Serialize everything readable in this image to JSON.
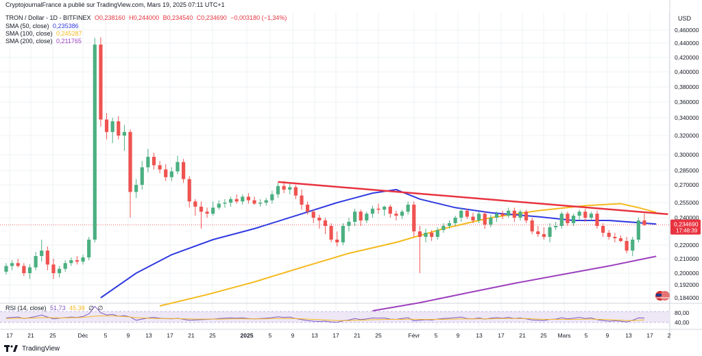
{
  "header": {
    "publisher_line": "CryptojournalFrance a publié sur TradingView.com, Mars 19, 2025 07:11 UTC+1",
    "symbol": "TRON / Dollar - 1D - BITFINEX",
    "ohlc": {
      "o": "O0,238160",
      "h": "H0,244000",
      "b": "B0,234540",
      "c": "C0,234690",
      "chg": "−0,003180 (−1,34%)"
    },
    "sma50": {
      "label": "SMA (50, close)",
      "value": "0,235386",
      "color": "#2f3ae0"
    },
    "sma100": {
      "label": "SMA (100, close)",
      "value": "0,245287",
      "color": "#f5b91c"
    },
    "sma200": {
      "label": "SMA (200, close)",
      "value": "0,211765",
      "color": "#9c3fbd"
    }
  },
  "footer": {
    "brand": "TradingView"
  },
  "rsi": {
    "label": "RSI (14, close)",
    "value1": "51,73",
    "value2": "45,38",
    "v3": "∅",
    "v4": "∅",
    "tick_high": "80,00",
    "tick_low": "40,00"
  },
  "price_tag": {
    "value": "0,234690",
    "countdown": "17:48:39"
  },
  "chart_data": {
    "type": "candlestick",
    "currency_label": "USD",
    "y_ticks": [
      "0,460000",
      "0,440000",
      "0,420000",
      "0,400000",
      "0,380000",
      "0,360000",
      "0,340000",
      "0,320000",
      "0,300000",
      "0,285000",
      "0,270000",
      "0,255000",
      "0,240000",
      "0,220000",
      "0,210000",
      "0,200000",
      "0,192000",
      "0,184000"
    ],
    "y_tick_values": [
      0.46,
      0.44,
      0.42,
      0.4,
      0.38,
      0.36,
      0.34,
      0.32,
      0.3,
      0.285,
      0.27,
      0.255,
      0.24,
      0.22,
      0.21,
      0.2,
      0.192,
      0.184
    ],
    "x_ticks": [
      "17",
      "21",
      "25",
      "Déc",
      "5",
      "9",
      "13",
      "17",
      "21",
      "25",
      "2025",
      "5",
      "9",
      "13",
      "17",
      "21",
      "25",
      "Févr",
      "5",
      "9",
      "13",
      "17",
      "21",
      "25",
      "Mars",
      "5",
      "9",
      "13",
      "17",
      "2"
    ],
    "candles": [
      {
        "o": 0.201,
        "h": 0.207,
        "l": 0.199,
        "c": 0.205
      },
      {
        "o": 0.205,
        "h": 0.209,
        "l": 0.202,
        "c": 0.207
      },
      {
        "o": 0.207,
        "h": 0.21,
        "l": 0.204,
        "c": 0.205
      },
      {
        "o": 0.205,
        "h": 0.207,
        "l": 0.198,
        "c": 0.2
      },
      {
        "o": 0.2,
        "h": 0.206,
        "l": 0.196,
        "c": 0.204
      },
      {
        "o": 0.204,
        "h": 0.215,
        "l": 0.202,
        "c": 0.212
      },
      {
        "o": 0.212,
        "h": 0.224,
        "l": 0.208,
        "c": 0.216
      },
      {
        "o": 0.216,
        "h": 0.219,
        "l": 0.202,
        "c": 0.206
      },
      {
        "o": 0.206,
        "h": 0.21,
        "l": 0.196,
        "c": 0.2
      },
      {
        "o": 0.2,
        "h": 0.205,
        "l": 0.197,
        "c": 0.203
      },
      {
        "o": 0.203,
        "h": 0.209,
        "l": 0.201,
        "c": 0.207
      },
      {
        "o": 0.207,
        "h": 0.211,
        "l": 0.205,
        "c": 0.209
      },
      {
        "o": 0.209,
        "h": 0.212,
        "l": 0.206,
        "c": 0.208
      },
      {
        "o": 0.208,
        "h": 0.213,
        "l": 0.206,
        "c": 0.211
      },
      {
        "o": 0.211,
        "h": 0.226,
        "l": 0.209,
        "c": 0.224
      },
      {
        "o": 0.224,
        "h": 0.448,
        "l": 0.222,
        "c": 0.438
      },
      {
        "o": 0.438,
        "h": 0.449,
        "l": 0.33,
        "c": 0.338
      },
      {
        "o": 0.338,
        "h": 0.346,
        "l": 0.316,
        "c": 0.324
      },
      {
        "o": 0.324,
        "h": 0.34,
        "l": 0.312,
        "c": 0.336
      },
      {
        "o": 0.336,
        "h": 0.342,
        "l": 0.316,
        "c": 0.32
      },
      {
        "o": 0.32,
        "h": 0.332,
        "l": 0.304,
        "c": 0.324
      },
      {
        "o": 0.324,
        "h": 0.327,
        "l": 0.24,
        "c": 0.264
      },
      {
        "o": 0.264,
        "h": 0.276,
        "l": 0.259,
        "c": 0.27
      },
      {
        "o": 0.27,
        "h": 0.294,
        "l": 0.266,
        "c": 0.288
      },
      {
        "o": 0.288,
        "h": 0.306,
        "l": 0.283,
        "c": 0.298
      },
      {
        "o": 0.298,
        "h": 0.302,
        "l": 0.286,
        "c": 0.29
      },
      {
        "o": 0.29,
        "h": 0.294,
        "l": 0.282,
        "c": 0.286
      },
      {
        "o": 0.286,
        "h": 0.291,
        "l": 0.274,
        "c": 0.278
      },
      {
        "o": 0.278,
        "h": 0.288,
        "l": 0.274,
        "c": 0.284
      },
      {
        "o": 0.284,
        "h": 0.299,
        "l": 0.281,
        "c": 0.293
      },
      {
        "o": 0.293,
        "h": 0.296,
        "l": 0.272,
        "c": 0.276
      },
      {
        "o": 0.276,
        "h": 0.279,
        "l": 0.25,
        "c": 0.256
      },
      {
        "o": 0.256,
        "h": 0.258,
        "l": 0.242,
        "c": 0.251
      },
      {
        "o": 0.251,
        "h": 0.256,
        "l": 0.232,
        "c": 0.246
      },
      {
        "o": 0.246,
        "h": 0.25,
        "l": 0.24,
        "c": 0.244
      },
      {
        "o": 0.244,
        "h": 0.256,
        "l": 0.242,
        "c": 0.25
      },
      {
        "o": 0.25,
        "h": 0.257,
        "l": 0.248,
        "c": 0.254
      },
      {
        "o": 0.254,
        "h": 0.258,
        "l": 0.25,
        "c": 0.255
      },
      {
        "o": 0.255,
        "h": 0.26,
        "l": 0.251,
        "c": 0.258
      },
      {
        "o": 0.258,
        "h": 0.262,
        "l": 0.254,
        "c": 0.256
      },
      {
        "o": 0.256,
        "h": 0.262,
        "l": 0.253,
        "c": 0.26
      },
      {
        "o": 0.26,
        "h": 0.263,
        "l": 0.254,
        "c": 0.257
      },
      {
        "o": 0.257,
        "h": 0.26,
        "l": 0.253,
        "c": 0.254
      },
      {
        "o": 0.254,
        "h": 0.258,
        "l": 0.251,
        "c": 0.255
      },
      {
        "o": 0.255,
        "h": 0.259,
        "l": 0.252,
        "c": 0.257
      },
      {
        "o": 0.257,
        "h": 0.265,
        "l": 0.254,
        "c": 0.262
      },
      {
        "o": 0.262,
        "h": 0.272,
        "l": 0.259,
        "c": 0.269
      },
      {
        "o": 0.269,
        "h": 0.274,
        "l": 0.263,
        "c": 0.266
      },
      {
        "o": 0.266,
        "h": 0.271,
        "l": 0.262,
        "c": 0.268
      },
      {
        "o": 0.268,
        "h": 0.27,
        "l": 0.258,
        "c": 0.261
      },
      {
        "o": 0.261,
        "h": 0.266,
        "l": 0.248,
        "c": 0.253
      },
      {
        "o": 0.253,
        "h": 0.256,
        "l": 0.243,
        "c": 0.246
      },
      {
        "o": 0.246,
        "h": 0.248,
        "l": 0.236,
        "c": 0.24
      },
      {
        "o": 0.24,
        "h": 0.243,
        "l": 0.232,
        "c": 0.238
      },
      {
        "o": 0.238,
        "h": 0.24,
        "l": 0.228,
        "c": 0.234
      },
      {
        "o": 0.234,
        "h": 0.236,
        "l": 0.222,
        "c": 0.224
      },
      {
        "o": 0.224,
        "h": 0.23,
        "l": 0.219,
        "c": 0.222
      },
      {
        "o": 0.222,
        "h": 0.236,
        "l": 0.22,
        "c": 0.234
      },
      {
        "o": 0.234,
        "h": 0.24,
        "l": 0.23,
        "c": 0.237
      },
      {
        "o": 0.237,
        "h": 0.249,
        "l": 0.234,
        "c": 0.246
      },
      {
        "o": 0.246,
        "h": 0.248,
        "l": 0.234,
        "c": 0.238
      },
      {
        "o": 0.238,
        "h": 0.246,
        "l": 0.236,
        "c": 0.244
      },
      {
        "o": 0.244,
        "h": 0.252,
        "l": 0.24,
        "c": 0.249
      },
      {
        "o": 0.249,
        "h": 0.254,
        "l": 0.244,
        "c": 0.248
      },
      {
        "o": 0.248,
        "h": 0.252,
        "l": 0.242,
        "c": 0.251
      },
      {
        "o": 0.251,
        "h": 0.253,
        "l": 0.24,
        "c": 0.244
      },
      {
        "o": 0.244,
        "h": 0.247,
        "l": 0.238,
        "c": 0.242
      },
      {
        "o": 0.242,
        "h": 0.248,
        "l": 0.239,
        "c": 0.246
      },
      {
        "o": 0.246,
        "h": 0.256,
        "l": 0.243,
        "c": 0.253
      },
      {
        "o": 0.253,
        "h": 0.256,
        "l": 0.226,
        "c": 0.23
      },
      {
        "o": 0.23,
        "h": 0.234,
        "l": 0.2,
        "c": 0.226
      },
      {
        "o": 0.226,
        "h": 0.232,
        "l": 0.222,
        "c": 0.229
      },
      {
        "o": 0.229,
        "h": 0.231,
        "l": 0.223,
        "c": 0.226
      },
      {
        "o": 0.226,
        "h": 0.233,
        "l": 0.224,
        "c": 0.231
      },
      {
        "o": 0.231,
        "h": 0.236,
        "l": 0.229,
        "c": 0.234
      },
      {
        "o": 0.234,
        "h": 0.238,
        "l": 0.232,
        "c": 0.236
      },
      {
        "o": 0.236,
        "h": 0.242,
        "l": 0.234,
        "c": 0.24
      },
      {
        "o": 0.24,
        "h": 0.25,
        "l": 0.237,
        "c": 0.247
      },
      {
        "o": 0.247,
        "h": 0.249,
        "l": 0.239,
        "c": 0.241
      },
      {
        "o": 0.241,
        "h": 0.245,
        "l": 0.236,
        "c": 0.238
      },
      {
        "o": 0.238,
        "h": 0.246,
        "l": 0.236,
        "c": 0.244
      },
      {
        "o": 0.244,
        "h": 0.246,
        "l": 0.232,
        "c": 0.235
      },
      {
        "o": 0.235,
        "h": 0.243,
        "l": 0.233,
        "c": 0.24
      },
      {
        "o": 0.24,
        "h": 0.246,
        "l": 0.237,
        "c": 0.244
      },
      {
        "o": 0.244,
        "h": 0.247,
        "l": 0.239,
        "c": 0.242
      },
      {
        "o": 0.242,
        "h": 0.25,
        "l": 0.24,
        "c": 0.247
      },
      {
        "o": 0.247,
        "h": 0.25,
        "l": 0.237,
        "c": 0.24
      },
      {
        "o": 0.24,
        "h": 0.248,
        "l": 0.238,
        "c": 0.246
      },
      {
        "o": 0.246,
        "h": 0.248,
        "l": 0.236,
        "c": 0.238
      },
      {
        "o": 0.238,
        "h": 0.24,
        "l": 0.228,
        "c": 0.23
      },
      {
        "o": 0.23,
        "h": 0.234,
        "l": 0.226,
        "c": 0.228
      },
      {
        "o": 0.228,
        "h": 0.233,
        "l": 0.224,
        "c": 0.226
      },
      {
        "o": 0.226,
        "h": 0.236,
        "l": 0.222,
        "c": 0.233
      },
      {
        "o": 0.233,
        "h": 0.237,
        "l": 0.231,
        "c": 0.234
      },
      {
        "o": 0.234,
        "h": 0.246,
        "l": 0.232,
        "c": 0.244
      },
      {
        "o": 0.244,
        "h": 0.246,
        "l": 0.234,
        "c": 0.236
      },
      {
        "o": 0.236,
        "h": 0.244,
        "l": 0.234,
        "c": 0.242
      },
      {
        "o": 0.242,
        "h": 0.248,
        "l": 0.238,
        "c": 0.246
      },
      {
        "o": 0.246,
        "h": 0.249,
        "l": 0.237,
        "c": 0.24
      },
      {
        "o": 0.24,
        "h": 0.246,
        "l": 0.238,
        "c": 0.244
      },
      {
        "o": 0.244,
        "h": 0.247,
        "l": 0.232,
        "c": 0.234
      },
      {
        "o": 0.234,
        "h": 0.236,
        "l": 0.226,
        "c": 0.229
      },
      {
        "o": 0.229,
        "h": 0.231,
        "l": 0.224,
        "c": 0.226
      },
      {
        "o": 0.226,
        "h": 0.229,
        "l": 0.222,
        "c": 0.225
      },
      {
        "o": 0.225,
        "h": 0.227,
        "l": 0.222,
        "c": 0.223
      },
      {
        "o": 0.223,
        "h": 0.226,
        "l": 0.214,
        "c": 0.216
      },
      {
        "o": 0.216,
        "h": 0.226,
        "l": 0.212,
        "c": 0.224
      },
      {
        "o": 0.224,
        "h": 0.24,
        "l": 0.222,
        "c": 0.238
      },
      {
        "o": 0.238,
        "h": 0.244,
        "l": 0.234,
        "c": 0.2347
      }
    ],
    "sma50_values": [
      {
        "i": 16,
        "v": 0.184
      },
      {
        "i": 22,
        "v": 0.2
      },
      {
        "i": 28,
        "v": 0.213
      },
      {
        "i": 35,
        "v": 0.224
      },
      {
        "i": 42,
        "v": 0.232
      },
      {
        "i": 49,
        "v": 0.242
      },
      {
        "i": 56,
        "v": 0.255
      },
      {
        "i": 62,
        "v": 0.263
      },
      {
        "i": 66,
        "v": 0.266
      },
      {
        "i": 70,
        "v": 0.258
      },
      {
        "i": 76,
        "v": 0.25
      },
      {
        "i": 82,
        "v": 0.245
      },
      {
        "i": 90,
        "v": 0.241
      },
      {
        "i": 96,
        "v": 0.238
      },
      {
        "i": 102,
        "v": 0.238
      },
      {
        "i": 110,
        "v": 0.2354
      }
    ],
    "sma100_values": [
      {
        "i": 26,
        "v": 0.179
      },
      {
        "i": 34,
        "v": 0.186
      },
      {
        "i": 42,
        "v": 0.194
      },
      {
        "i": 50,
        "v": 0.204
      },
      {
        "i": 58,
        "v": 0.214
      },
      {
        "i": 66,
        "v": 0.222
      },
      {
        "i": 74,
        "v": 0.232
      },
      {
        "i": 82,
        "v": 0.24
      },
      {
        "i": 90,
        "v": 0.247
      },
      {
        "i": 98,
        "v": 0.252
      },
      {
        "i": 104,
        "v": 0.254
      },
      {
        "i": 107,
        "v": 0.25
      },
      {
        "i": 110,
        "v": 0.2453
      }
    ],
    "sma200_values": [
      {
        "i": 62,
        "v": 0.176
      },
      {
        "i": 70,
        "v": 0.181
      },
      {
        "i": 78,
        "v": 0.187
      },
      {
        "i": 86,
        "v": 0.193
      },
      {
        "i": 94,
        "v": 0.199
      },
      {
        "i": 102,
        "v": 0.205
      },
      {
        "i": 110,
        "v": 0.2118
      }
    ],
    "trendline": {
      "from": {
        "i": 46,
        "v": 0.273
      },
      "to": {
        "i": 112,
        "v": 0.2435
      },
      "color": "#e8333f"
    },
    "rsi_values": [
      52,
      54,
      55,
      50,
      53,
      57,
      62,
      55,
      49,
      51,
      53,
      55,
      54,
      57,
      66,
      92,
      70,
      62,
      64,
      58,
      60,
      55,
      44,
      48,
      52,
      54,
      51,
      50,
      49,
      51,
      47,
      44,
      45,
      46,
      47,
      48,
      50,
      51,
      52,
      51,
      52,
      50,
      49,
      50,
      51,
      53,
      56,
      54,
      55,
      50,
      46,
      43,
      41,
      40,
      41,
      38,
      37,
      42,
      45,
      50,
      46,
      49,
      52,
      51,
      52,
      48,
      47,
      50,
      53,
      42,
      44,
      46,
      45,
      48,
      50,
      51,
      53,
      55,
      50,
      49,
      52,
      48,
      51,
      53,
      51,
      54,
      50,
      52,
      49,
      45,
      44,
      43,
      47,
      48,
      53,
      49,
      51,
      54,
      50,
      52,
      46,
      43,
      41,
      42,
      41,
      38,
      44,
      52,
      51.7
    ],
    "rsi_ma_values": [
      50,
      50,
      51,
      51,
      51,
      52,
      53,
      53,
      53,
      52,
      52,
      53,
      53,
      54,
      56,
      58,
      59,
      59,
      59,
      58,
      57,
      55,
      53,
      52,
      51,
      50,
      50,
      50,
      50,
      50,
      49,
      49,
      48,
      48,
      48,
      48,
      48,
      48,
      49,
      49,
      49,
      49,
      49,
      49,
      49,
      50,
      50,
      50,
      50,
      50,
      49,
      48,
      47,
      46,
      45,
      44,
      43,
      43,
      43,
      44,
      44,
      45,
      46,
      46,
      47,
      47,
      47,
      47,
      48,
      47,
      47,
      47,
      47,
      47,
      47,
      48,
      48,
      49,
      49,
      49,
      49,
      49,
      49,
      50,
      50,
      50,
      50,
      50,
      50,
      49,
      48,
      47,
      47,
      47,
      47,
      47,
      47,
      47,
      48,
      48,
      47,
      47,
      46,
      45,
      44,
      43,
      43,
      44,
      45.4
    ],
    "colors": {
      "up": "#26a69a",
      "up_body": "#4caf81",
      "down": "#ef5350",
      "grid": "#eef0f3",
      "axis_text": "#131722"
    }
  }
}
